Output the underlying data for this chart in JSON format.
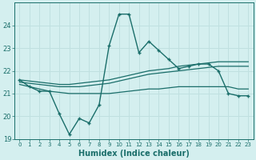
{
  "xlabel": "Humidex (Indice chaleur)",
  "bg_color": "#d4efef",
  "grid_color": "#c0e0e0",
  "line_color": "#1a6e6a",
  "xlim": [
    -0.5,
    23.5
  ],
  "ylim": [
    19,
    25
  ],
  "yticks": [
    19,
    20,
    21,
    22,
    23,
    24
  ],
  "xticks": [
    0,
    1,
    2,
    3,
    4,
    5,
    6,
    7,
    8,
    9,
    10,
    11,
    12,
    13,
    14,
    15,
    16,
    17,
    18,
    19,
    20,
    21,
    22,
    23
  ],
  "series": {
    "wavy": [
      21.6,
      21.3,
      21.1,
      21.1,
      20.1,
      19.2,
      19.9,
      19.7,
      20.5,
      23.1,
      24.5,
      24.5,
      22.8,
      23.3,
      22.9,
      22.5,
      22.1,
      22.2,
      22.3,
      22.3,
      22.0,
      21.0,
      20.9,
      20.9
    ],
    "upper_linear": [
      21.6,
      21.55,
      21.5,
      21.45,
      21.4,
      21.4,
      21.45,
      21.5,
      21.55,
      21.6,
      21.7,
      21.8,
      21.9,
      22.0,
      22.05,
      22.1,
      22.2,
      22.25,
      22.3,
      22.35,
      22.4,
      22.4,
      22.4,
      22.4
    ],
    "mid_linear": [
      21.5,
      21.45,
      21.4,
      21.35,
      21.3,
      21.3,
      21.3,
      21.35,
      21.4,
      21.45,
      21.55,
      21.65,
      21.75,
      21.85,
      21.9,
      21.95,
      22.0,
      22.05,
      22.1,
      22.15,
      22.2,
      22.2,
      22.2,
      22.2
    ],
    "lower_linear": [
      21.4,
      21.3,
      21.2,
      21.1,
      21.05,
      21.0,
      21.0,
      21.0,
      21.0,
      21.0,
      21.05,
      21.1,
      21.15,
      21.2,
      21.2,
      21.25,
      21.3,
      21.3,
      21.3,
      21.3,
      21.3,
      21.3,
      21.2,
      21.2
    ]
  }
}
